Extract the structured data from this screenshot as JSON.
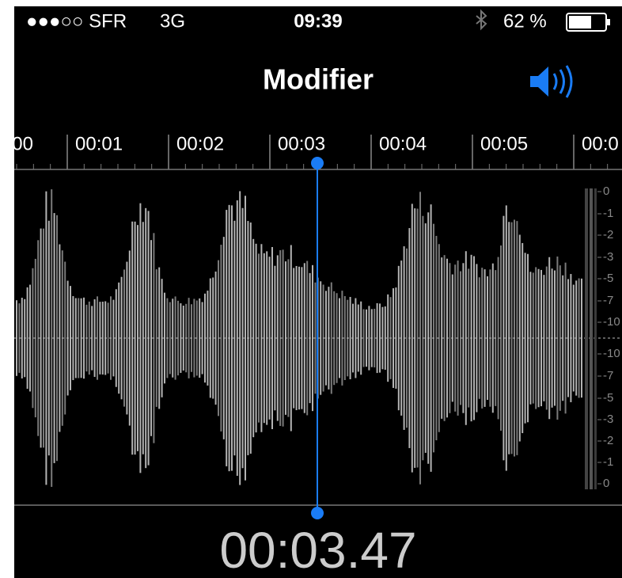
{
  "status_bar": {
    "carrier": "●●●○○ SFR",
    "network": "3G",
    "time": "09:39",
    "battery": "62 %"
  },
  "header": {
    "title": "Modifier"
  },
  "timeline": {
    "labels": [
      "00",
      "00:01",
      "00:02",
      "00:03",
      "00:04",
      "00:05",
      "00:0"
    ]
  },
  "level_scale": {
    "labels": [
      "0",
      "-1",
      "-2",
      "-3",
      "-5",
      "-7",
      "-10",
      "-10",
      "-7",
      "-5",
      "-3",
      "-2",
      "-1",
      "0"
    ]
  },
  "playback": {
    "time": "00:03.47"
  }
}
